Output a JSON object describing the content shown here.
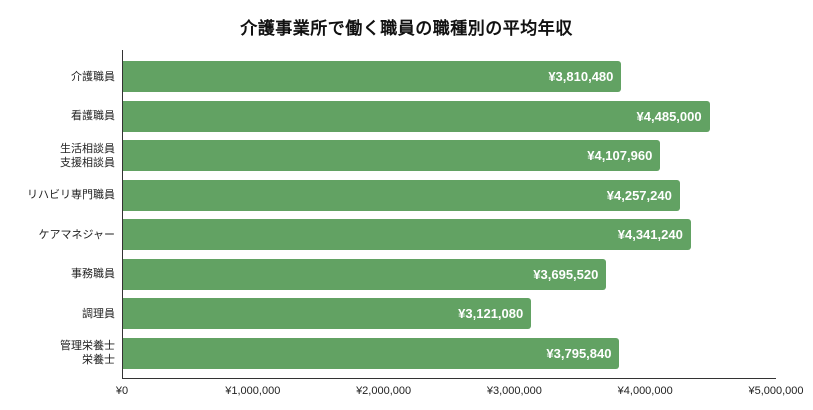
{
  "title": "介護事業所で働く職員の職種別の平均年収",
  "chart_data": {
    "type": "bar",
    "orientation": "horizontal",
    "title": "介護事業所で働く職員の職種別の平均年収",
    "xlabel": "",
    "ylabel": "",
    "categories": [
      "介護職員",
      "看護職員",
      "生活相談員\n支援相談員",
      "リハビリ専門職員",
      "ケアマネジャー",
      "事務職員",
      "調理員",
      "管理栄養士\n栄養士"
    ],
    "values": [
      3810480,
      4485000,
      4107960,
      4257240,
      4341240,
      3695520,
      3121080,
      3795840
    ],
    "value_labels": [
      "¥3,810,480",
      "¥4,485,000",
      "¥4,107,960",
      "¥4,257,240",
      "¥4,341,240",
      "¥3,695,520",
      "¥3,121,080",
      "¥3,795,840"
    ],
    "xlim": [
      0,
      5000000
    ],
    "x_ticks": [
      "¥0",
      "¥1,000,000",
      "¥2,000,000",
      "¥3,000,000",
      "¥4,000,000",
      "¥5,000,000"
    ],
    "bar_color": "#62a263",
    "grid": false,
    "legend": null
  },
  "rows": [
    {
      "line1": "介護職員",
      "line2": "",
      "label": "¥3,810,480"
    },
    {
      "line1": "看護職員",
      "line2": "",
      "label": "¥4,485,000"
    },
    {
      "line1": "生活相談員",
      "line2": "支援相談員",
      "label": "¥4,107,960"
    },
    {
      "line1": "リハビリ専門職員",
      "line2": "",
      "label": "¥4,257,240"
    },
    {
      "line1": "ケアマネジャー",
      "line2": "",
      "label": "¥4,341,240"
    },
    {
      "line1": "事務職員",
      "line2": "",
      "label": "¥3,695,520"
    },
    {
      "line1": "調理員",
      "line2": "",
      "label": "¥3,121,080"
    },
    {
      "line1": "管理栄養士",
      "line2": "栄養士",
      "label": "¥3,795,840"
    }
  ],
  "ticks": [
    "¥0",
    "¥1,000,000",
    "¥2,000,000",
    "¥3,000,000",
    "¥4,000,000",
    "¥5,000,000"
  ]
}
